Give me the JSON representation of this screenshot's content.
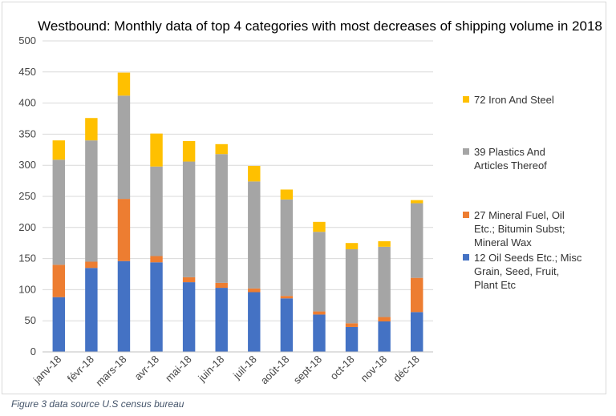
{
  "caption": "Figure 3 data source U.S census bureau",
  "chart_data": {
    "type": "bar",
    "stacked": true,
    "title": "Westbound: Monthly data of top 4 categories with most decreases of shipping volume in 2018",
    "xlabel": "",
    "ylabel": "",
    "ylim": [
      0,
      500
    ],
    "yticks": [
      0,
      50,
      100,
      150,
      200,
      250,
      300,
      350,
      400,
      450,
      500
    ],
    "grid": true,
    "legend_position": "right",
    "categories": [
      "janv-18",
      "févr-18",
      "mars-18",
      "avr-18",
      "mai-18",
      "juin-18",
      "juil-18",
      "août-18",
      "sept-18",
      "oct-18",
      "nov-18",
      "déc-18"
    ],
    "series": [
      {
        "name": "12 Oil Seeds Etc.; Misc Grain, Seed, Fruit, Plant Etc",
        "color": "#4472c4",
        "values": [
          88,
          135,
          146,
          144,
          112,
          103,
          96,
          86,
          60,
          40,
          49,
          64
        ]
      },
      {
        "name": "27 Mineral Fuel, Oil Etc.; Bitumin Subst; Mineral Wax",
        "color": "#ed7d31",
        "values": [
          52,
          10,
          100,
          10,
          8,
          8,
          6,
          4,
          5,
          6,
          7,
          55
        ]
      },
      {
        "name": "39 Plastics And Articles Thereof",
        "color": "#a5a5a5",
        "values": [
          169,
          195,
          166,
          144,
          186,
          207,
          172,
          155,
          128,
          119,
          113,
          120
        ]
      },
      {
        "name": "72 Iron And Steel",
        "color": "#ffc000",
        "values": [
          31,
          36,
          37,
          53,
          33,
          16,
          25,
          16,
          16,
          10,
          9,
          5
        ]
      }
    ]
  }
}
